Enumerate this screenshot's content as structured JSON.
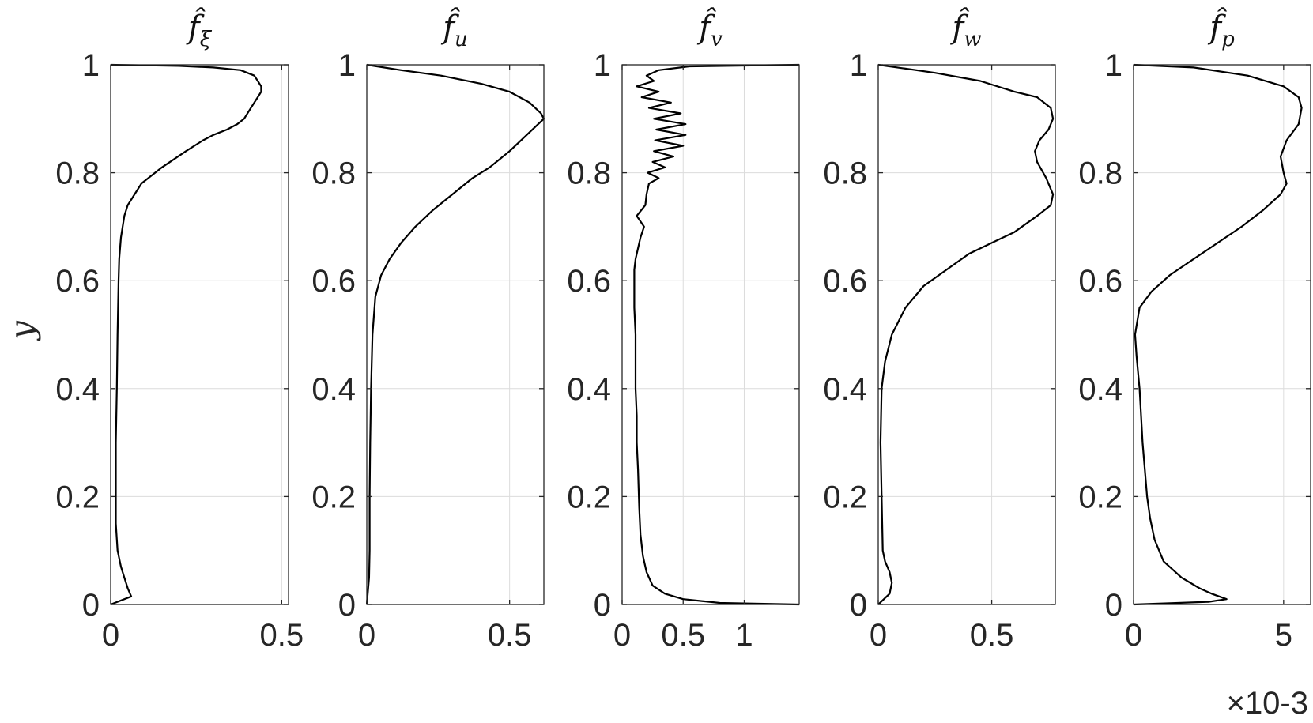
{
  "chart_data": [
    {
      "type": "line",
      "title": "f̂",
      "title_sub": "ξ",
      "ylabel": "y",
      "xlim": [
        0,
        0.52
      ],
      "ylim": [
        0,
        1
      ],
      "xticks": [
        0,
        0.5
      ],
      "xtick_labels": [
        "0",
        "0.5"
      ],
      "yticks": [
        0,
        0.2,
        0.4,
        0.6,
        0.8,
        1
      ],
      "ytick_labels": [
        "0",
        "0.2",
        "0.4",
        "0.6",
        "0.8",
        "1"
      ],
      "grid": true,
      "series": [
        {
          "x": [
            0.0,
            0.06,
            0.05,
            0.04,
            0.03,
            0.02,
            0.015,
            0.015,
            0.015,
            0.018,
            0.02,
            0.023,
            0.025,
            0.03,
            0.04,
            0.05,
            0.07,
            0.09,
            0.15,
            0.22,
            0.27,
            0.3,
            0.34,
            0.37,
            0.39,
            0.41,
            0.42,
            0.43,
            0.44,
            0.44,
            0.43,
            0.42,
            0.38,
            0.3,
            0.2,
            0.1,
            0.0
          ],
          "y": [
            0.0,
            0.015,
            0.03,
            0.05,
            0.07,
            0.1,
            0.15,
            0.2,
            0.3,
            0.4,
            0.5,
            0.6,
            0.64,
            0.68,
            0.72,
            0.74,
            0.76,
            0.78,
            0.81,
            0.84,
            0.86,
            0.87,
            0.88,
            0.89,
            0.9,
            0.92,
            0.93,
            0.94,
            0.95,
            0.96,
            0.97,
            0.98,
            0.99,
            0.995,
            0.998,
            0.999,
            1.0
          ]
        }
      ]
    },
    {
      "type": "line",
      "title": "f̂",
      "title_sub": "u",
      "xlim": [
        0,
        0.62
      ],
      "ylim": [
        0,
        1
      ],
      "xticks": [
        0,
        0.5
      ],
      "xtick_labels": [
        "0",
        "0.5"
      ],
      "yticks": [
        0,
        0.2,
        0.4,
        0.6,
        0.8,
        1
      ],
      "ytick_labels": [
        "0",
        "0.2",
        "0.4",
        "0.6",
        "0.8",
        "1"
      ],
      "grid": true,
      "series": [
        {
          "x": [
            0.0,
            0.008,
            0.01,
            0.01,
            0.012,
            0.015,
            0.02,
            0.03,
            0.05,
            0.08,
            0.12,
            0.17,
            0.23,
            0.3,
            0.37,
            0.43,
            0.5,
            0.56,
            0.6,
            0.62,
            0.61,
            0.57,
            0.5,
            0.4,
            0.26,
            0.12,
            0.0
          ],
          "y": [
            0.0,
            0.05,
            0.1,
            0.2,
            0.3,
            0.4,
            0.5,
            0.57,
            0.61,
            0.64,
            0.67,
            0.7,
            0.73,
            0.76,
            0.79,
            0.81,
            0.84,
            0.87,
            0.89,
            0.9,
            0.91,
            0.93,
            0.95,
            0.965,
            0.98,
            0.99,
            1.0
          ]
        }
      ]
    },
    {
      "type": "line",
      "title": "f̂",
      "title_sub": "v",
      "xlim": [
        0,
        1.45
      ],
      "ylim": [
        0,
        1
      ],
      "xticks": [
        0,
        0.5,
        1
      ],
      "xtick_labels": [
        "0",
        "0.5",
        "1"
      ],
      "yticks": [
        0,
        0.2,
        0.4,
        0.6,
        0.8,
        1
      ],
      "ytick_labels": [
        "0",
        "0.2",
        "0.4",
        "0.6",
        "0.8",
        "1"
      ],
      "grid": true,
      "series": [
        {
          "x": [
            1.45,
            0.8,
            0.5,
            0.35,
            0.25,
            0.2,
            0.17,
            0.15,
            0.14,
            0.13,
            0.12,
            0.12,
            0.11,
            0.11,
            0.11,
            0.1,
            0.1,
            0.1,
            0.1,
            0.11,
            0.13,
            0.15,
            0.18,
            0.12,
            0.19,
            0.2,
            0.22,
            0.3,
            0.21,
            0.35,
            0.25,
            0.42,
            0.26,
            0.5,
            0.27,
            0.52,
            0.28,
            0.52,
            0.26,
            0.48,
            0.22,
            0.4,
            0.16,
            0.3,
            0.12,
            0.26,
            0.2,
            0.3,
            0.55,
            1.45
          ],
          "y": [
            0.0,
            0.003,
            0.01,
            0.02,
            0.035,
            0.06,
            0.09,
            0.13,
            0.18,
            0.25,
            0.3,
            0.35,
            0.4,
            0.45,
            0.5,
            0.55,
            0.58,
            0.6,
            0.62,
            0.64,
            0.66,
            0.68,
            0.7,
            0.72,
            0.74,
            0.76,
            0.78,
            0.79,
            0.8,
            0.81,
            0.82,
            0.83,
            0.84,
            0.85,
            0.86,
            0.87,
            0.88,
            0.89,
            0.9,
            0.91,
            0.92,
            0.93,
            0.94,
            0.95,
            0.96,
            0.97,
            0.98,
            0.99,
            0.997,
            1.0
          ]
        }
      ]
    },
    {
      "type": "line",
      "title": "f̂",
      "title_sub": "w",
      "xlim": [
        0,
        0.78
      ],
      "ylim": [
        0,
        1
      ],
      "xticks": [
        0,
        0.5
      ],
      "xtick_labels": [
        "0",
        "0.5"
      ],
      "yticks": [
        0,
        0.2,
        0.4,
        0.6,
        0.8,
        1
      ],
      "ytick_labels": [
        "0",
        "0.2",
        "0.4",
        "0.6",
        "0.8",
        "1"
      ],
      "grid": true,
      "series": [
        {
          "x": [
            0.0,
            0.05,
            0.06,
            0.05,
            0.03,
            0.02,
            0.015,
            0.01,
            0.015,
            0.03,
            0.06,
            0.12,
            0.2,
            0.3,
            0.4,
            0.5,
            0.6,
            0.7,
            0.76,
            0.77,
            0.74,
            0.7,
            0.69,
            0.71,
            0.75,
            0.77,
            0.76,
            0.7,
            0.6,
            0.45,
            0.25,
            0.0
          ],
          "y": [
            0.0,
            0.02,
            0.04,
            0.06,
            0.08,
            0.1,
            0.2,
            0.3,
            0.4,
            0.45,
            0.5,
            0.55,
            0.59,
            0.62,
            0.65,
            0.67,
            0.69,
            0.72,
            0.74,
            0.76,
            0.79,
            0.82,
            0.84,
            0.86,
            0.88,
            0.9,
            0.92,
            0.94,
            0.95,
            0.97,
            0.985,
            1.0
          ]
        }
      ]
    },
    {
      "type": "line",
      "title": "f̂",
      "title_sub": "p",
      "xlim": [
        0,
        5.9
      ],
      "ylim": [
        0,
        1
      ],
      "xticks": [
        0,
        5
      ],
      "xtick_labels": [
        "0",
        "5"
      ],
      "yticks": [
        0,
        0.2,
        0.4,
        0.6,
        0.8,
        1
      ],
      "ytick_labels": [
        "0",
        "0.2",
        "0.4",
        "0.6",
        "0.8",
        "1"
      ],
      "x_multiplier": "×10-3",
      "grid": true,
      "series": [
        {
          "x": [
            0.0,
            2.5,
            3.1,
            2.6,
            2.2,
            1.6,
            1.0,
            0.7,
            0.55,
            0.45,
            0.3,
            0.2,
            0.1,
            0.05,
            0.2,
            0.6,
            1.2,
            2.0,
            2.8,
            3.6,
            4.3,
            4.9,
            5.1,
            5.0,
            4.9,
            5.1,
            5.5,
            5.6,
            5.5,
            5.0,
            3.8,
            2.0,
            0.0
          ],
          "y": [
            0.0,
            0.005,
            0.01,
            0.02,
            0.03,
            0.05,
            0.08,
            0.12,
            0.16,
            0.2,
            0.3,
            0.4,
            0.46,
            0.5,
            0.55,
            0.58,
            0.61,
            0.64,
            0.67,
            0.7,
            0.73,
            0.76,
            0.78,
            0.8,
            0.83,
            0.86,
            0.89,
            0.92,
            0.94,
            0.96,
            0.98,
            0.995,
            1.0
          ]
        }
      ]
    }
  ]
}
